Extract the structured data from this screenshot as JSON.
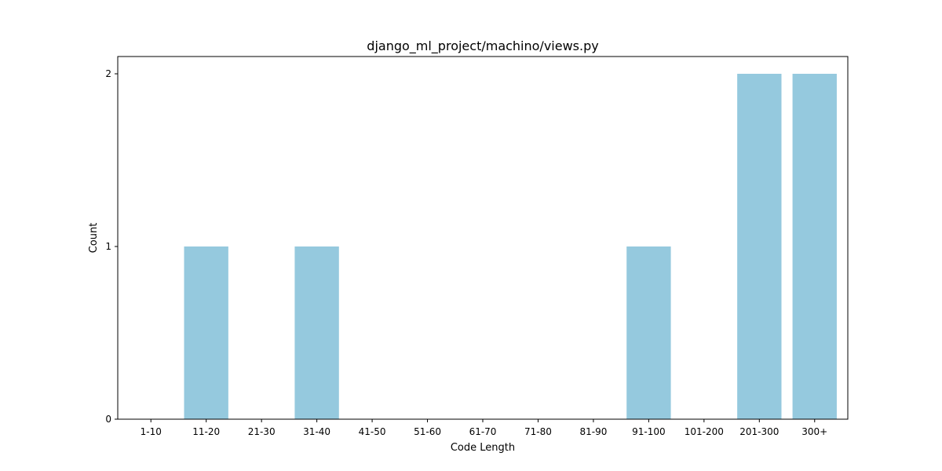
{
  "chart_data": {
    "type": "bar",
    "title": "django_ml_project/machino/views.py",
    "xlabel": "Code Length",
    "ylabel": "Count",
    "categories": [
      "1-10",
      "11-20",
      "21-30",
      "31-40",
      "41-50",
      "51-60",
      "61-70",
      "71-80",
      "81-90",
      "91-100",
      "101-200",
      "201-300",
      "300+"
    ],
    "values": [
      0,
      1,
      0,
      1,
      0,
      0,
      0,
      0,
      0,
      1,
      0,
      2,
      2
    ],
    "yticks": [
      0,
      1,
      2
    ],
    "ylim": [
      0,
      2.1
    ],
    "grid": false,
    "bar_color": "#95c9de"
  }
}
